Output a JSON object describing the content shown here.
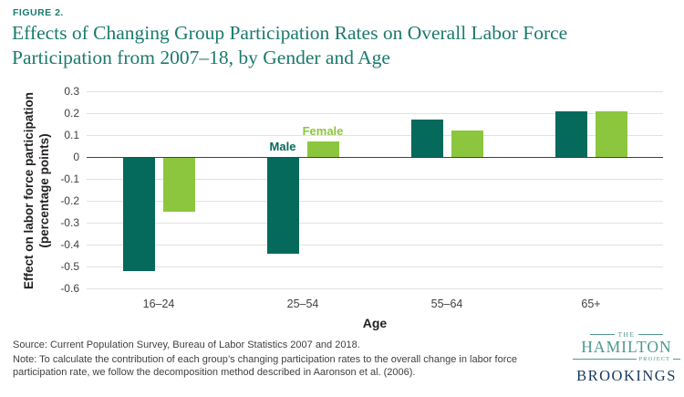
{
  "figure_label": "FIGURE 2.",
  "title_line1": "Effects of Changing Group Participation Rates on Overall Labor Force",
  "title_line2": "Participation from 2007–18, by Gender and Age",
  "chart_data": {
    "type": "bar",
    "title": "Effects of Changing Group Participation Rates on Overall Labor Force Participation from 2007–18, by Gender and Age",
    "categories": [
      "16–24",
      "25–54",
      "55–64",
      "65+"
    ],
    "series": [
      {
        "name": "Male",
        "color": "#05695b",
        "values": [
          -0.52,
          -0.44,
          0.17,
          0.21
        ]
      },
      {
        "name": "Female",
        "color": "#8cc63f",
        "values": [
          -0.25,
          0.07,
          0.12,
          0.21
        ]
      }
    ],
    "xlabel": "Age",
    "ylabel_line1": "Effect on labor force participation",
    "ylabel_line2": "(percentage points)",
    "ylim": [
      -0.6,
      0.3
    ],
    "yticks": [
      "0.3",
      "0.2",
      "0.1",
      "0",
      "-0.1",
      "-0.2",
      "-0.3",
      "-0.4",
      "-0.5",
      "-0.6"
    ],
    "grid": "horizontal-light-gray",
    "legend_style": "inline-labels-over-25-54-group"
  },
  "footer": {
    "source": "Source: Current Population Survey, Bureau of Labor Statistics 2007 and 2018.",
    "note": "Note: To calculate the contribution of each group’s changing participation rates to the overall change in labor force participation rate, we follow the decomposition method described in Aaronson et al. (2006)."
  },
  "logo": {
    "the": "THE",
    "hamilton": "HAMILTON",
    "project": "PROJECT",
    "brookings": "BROOKINGS"
  },
  "colors": {
    "title_teal": "#1b7a6e",
    "male_bar": "#05695b",
    "female_bar": "#8cc63f",
    "gridline": "#e1e1e1",
    "zero_axis": "#414042",
    "text_gray": "#414042",
    "hamilton_logo_teal": "#4d9a8e",
    "brookings_navy": "#17395f"
  }
}
